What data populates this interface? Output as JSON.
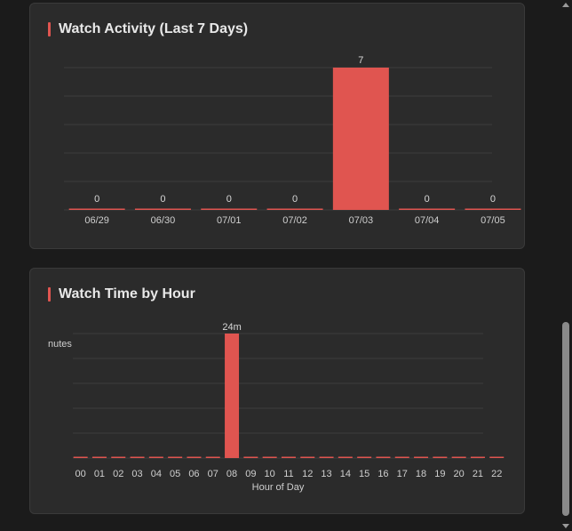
{
  "activity": {
    "title": "Watch Activity (Last 7 Days)"
  },
  "hourly": {
    "title": "Watch Time by Hour"
  },
  "colors": {
    "accent": "#e05550",
    "card_bg": "#2b2b2b",
    "page_bg": "#1b1b1b"
  },
  "chart_data": [
    {
      "type": "bar",
      "title": "Watch Activity (Last 7 Days)",
      "categories": [
        "06/29",
        "06/30",
        "07/01",
        "07/02",
        "07/03",
        "07/04",
        "07/05"
      ],
      "values": [
        0,
        0,
        0,
        0,
        7,
        0,
        0
      ],
      "data_labels": [
        "0",
        "0",
        "0",
        "0",
        "7",
        "0",
        "0"
      ],
      "ylim": [
        0,
        7
      ],
      "grid": true,
      "xlabel": "",
      "ylabel": ""
    },
    {
      "type": "bar",
      "title": "Watch Time by Hour",
      "categories": [
        "00",
        "01",
        "02",
        "03",
        "04",
        "05",
        "06",
        "07",
        "08",
        "09",
        "10",
        "11",
        "12",
        "13",
        "14",
        "15",
        "16",
        "17",
        "18",
        "19",
        "20",
        "21",
        "22"
      ],
      "values": [
        0,
        0,
        0,
        0,
        0,
        0,
        0,
        0,
        24,
        0,
        0,
        0,
        0,
        0,
        0,
        0,
        0,
        0,
        0,
        0,
        0,
        0,
        0
      ],
      "data_labels": {
        "08": "24m"
      },
      "xlabel": "Hour of Day",
      "ylabel_visible": "nutes",
      "ylim": [
        0,
        24
      ],
      "grid": true
    }
  ]
}
